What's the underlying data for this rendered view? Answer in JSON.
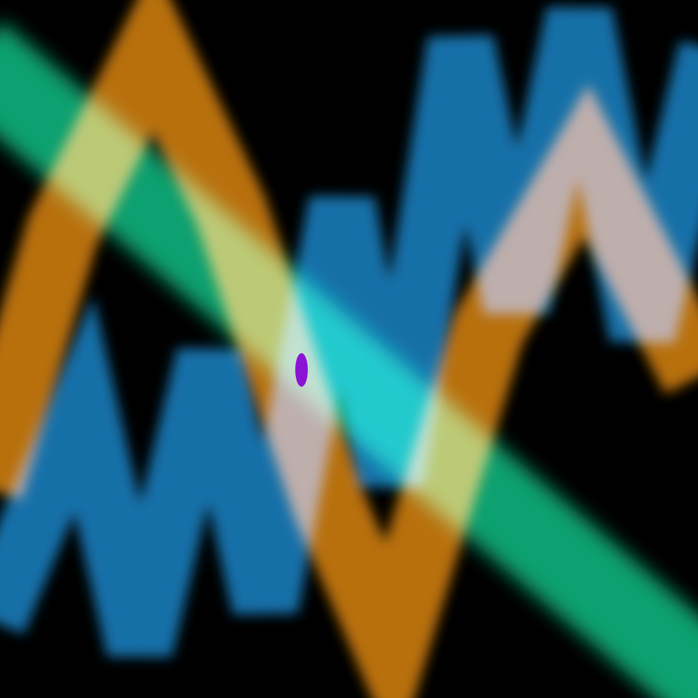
{
  "scene": {
    "background_color": "#000000",
    "bands": [
      {
        "name": "green-diagonal-band",
        "color": "#10a070",
        "shape": "straight-diagonal"
      },
      {
        "name": "orange-zigzag-band",
        "color": "#b87010",
        "shape": "zigzag"
      },
      {
        "name": "blue-zigzag-band",
        "color": "#1570a8",
        "shape": "zigzag"
      }
    ],
    "marker": {
      "name": "purple-oval-marker",
      "color": "#8a14d4",
      "shape": "ellipse"
    }
  }
}
